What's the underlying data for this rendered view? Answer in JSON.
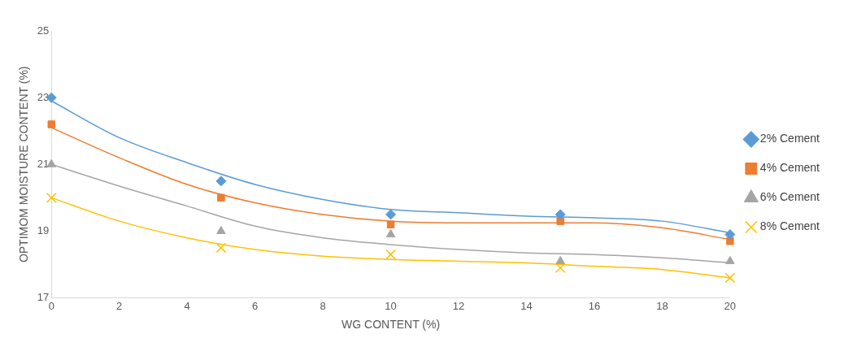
{
  "chart_data": {
    "type": "scatter",
    "xlabel": "WG CONTENT (%)",
    "ylabel": "OPTIMOM MOISTURE CONTENT (%)",
    "x": [
      0,
      5,
      10,
      15,
      20
    ],
    "xlim": [
      0,
      20
    ],
    "xticks": [
      0,
      2,
      4,
      6,
      8,
      10,
      12,
      14,
      16,
      18,
      20
    ],
    "ylim": [
      17,
      25
    ],
    "yticks": [
      17,
      19,
      21,
      23,
      25
    ],
    "grid": false,
    "legend": "right",
    "series": [
      {
        "name": "2% Cement",
        "color": "#5b9bd5",
        "marker": "diamond",
        "values": [
          23.0,
          20.5,
          19.5,
          19.5,
          18.9
        ]
      },
      {
        "name": "4% Cement",
        "color": "#ed7d31",
        "marker": "square",
        "values": [
          22.2,
          20.0,
          19.2,
          19.3,
          18.7
        ]
      },
      {
        "name": "6% Cement",
        "color": "#a5a5a5",
        "marker": "triangle",
        "values": [
          21.0,
          19.0,
          18.9,
          18.1,
          18.1
        ]
      },
      {
        "name": "8% Cement",
        "color": "#ffc000",
        "marker": "cross",
        "values": [
          20.0,
          18.5,
          18.3,
          17.9,
          17.6
        ]
      },
      {
        "type": "line",
        "color": "#5b9bd5",
        "marker": "none",
        "x": [
          0,
          2,
          4,
          6,
          8,
          10,
          12,
          14,
          16,
          18,
          20
        ],
        "values": [
          22.9,
          21.8,
          21.05,
          20.4,
          19.95,
          19.65,
          19.55,
          19.45,
          19.4,
          19.3,
          18.95
        ]
      },
      {
        "type": "line",
        "color": "#ed7d31",
        "marker": "none",
        "x": [
          0,
          2,
          4,
          6,
          8,
          10,
          12,
          14,
          16,
          18,
          20
        ],
        "values": [
          22.1,
          21.2,
          20.4,
          19.85,
          19.5,
          19.3,
          19.25,
          19.25,
          19.25,
          19.1,
          18.75
        ]
      },
      {
        "type": "line",
        "color": "#a5a5a5",
        "marker": "none",
        "x": [
          0,
          2,
          4,
          6,
          8,
          10,
          12,
          14,
          16,
          18,
          20
        ],
        "values": [
          21.0,
          20.35,
          19.75,
          19.15,
          18.8,
          18.6,
          18.45,
          18.35,
          18.3,
          18.2,
          18.05
        ]
      },
      {
        "type": "line",
        "color": "#ffc000",
        "marker": "none",
        "x": [
          0,
          2,
          4,
          6,
          8,
          10,
          12,
          14,
          16,
          18,
          20
        ],
        "values": [
          20.0,
          19.3,
          18.8,
          18.45,
          18.25,
          18.15,
          18.1,
          18.05,
          17.95,
          17.85,
          17.6
        ]
      }
    ]
  }
}
